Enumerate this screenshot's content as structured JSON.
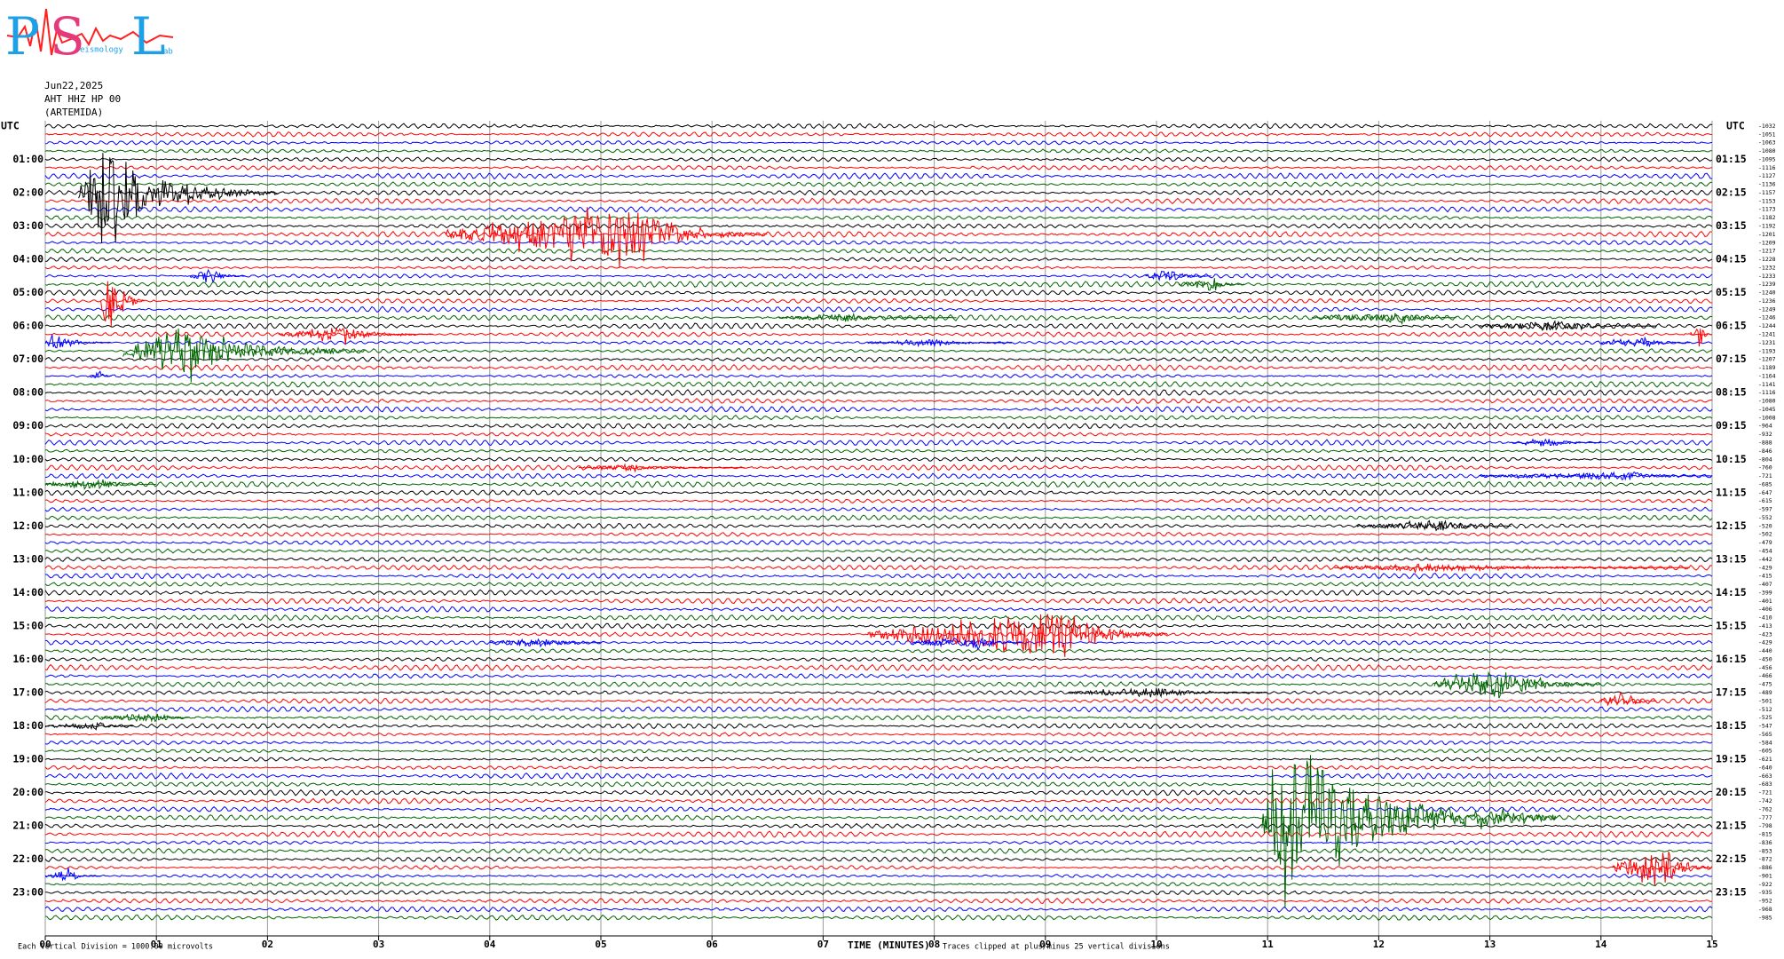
{
  "chart_data": {
    "type": "helicorder",
    "logo": {
      "letters": [
        "P",
        "S",
        "L"
      ],
      "words": [
        "eismology",
        "ab"
      ]
    },
    "date": "Jun22,2025",
    "station": "AHT HHZ HP 00",
    "site": "(ARTEMIDA)",
    "zone_left": "UTC",
    "zone_right": "UTC",
    "xlabel": "TIME (MINUTES)",
    "scale_note": "Each Vertical Division = 1000.00 microvolts",
    "clip_note": "Traces clipped at plus/minus 25 vertical divisions",
    "xlim": [
      0,
      15
    ],
    "xticks": [
      {
        "value": 0,
        "label": "00"
      },
      {
        "value": 1,
        "label": "01"
      },
      {
        "value": 2,
        "label": "02"
      },
      {
        "value": 3,
        "label": "03"
      },
      {
        "value": 4,
        "label": "04"
      },
      {
        "value": 5,
        "label": "05"
      },
      {
        "value": 6,
        "label": "06"
      },
      {
        "value": 7,
        "label": "07"
      },
      {
        "value": 8,
        "label": "08"
      },
      {
        "value": 9,
        "label": "09"
      },
      {
        "value": 10,
        "label": "10"
      },
      {
        "value": 11,
        "label": "11"
      },
      {
        "value": 12,
        "label": "12"
      },
      {
        "value": 13,
        "label": "13"
      },
      {
        "value": 14,
        "label": "14"
      },
      {
        "value": 15,
        "label": "15"
      }
    ],
    "grid": true,
    "trace_colors": [
      "#000000",
      "#ff0000",
      "#0000ff",
      "#006400"
    ],
    "left_labels": [
      "01:00",
      "02:00",
      "03:00",
      "04:00",
      "05:00",
      "06:00",
      "07:00",
      "08:00",
      "09:00",
      "10:00",
      "11:00",
      "12:00",
      "13:00",
      "14:00",
      "15:00",
      "16:00",
      "17:00",
      "18:00",
      "19:00",
      "20:00",
      "21:00",
      "22:00",
      "23:00"
    ],
    "right_labels": [
      "01:15",
      "02:15",
      "03:15",
      "04:15",
      "05:15",
      "06:15",
      "07:15",
      "08:15",
      "09:15",
      "10:15",
      "11:15",
      "12:15",
      "13:15",
      "14:15",
      "15:15",
      "16:15",
      "17:15",
      "18:15",
      "19:15",
      "20:15",
      "21:15",
      "22:15",
      "23:15"
    ],
    "offsets": [
      -1032,
      -1051,
      -1063,
      -1080,
      -1095,
      -1116,
      -1127,
      -1136,
      -1157,
      -1153,
      -1173,
      -1182,
      -1192,
      -1201,
      -1209,
      -1217,
      -1228,
      -1232,
      -1233,
      -1239,
      -1240,
      -1236,
      -1249,
      -1246,
      -1244,
      -1241,
      -1231,
      -1193,
      -1207,
      -1189,
      -1164,
      -1141,
      -1116,
      -1080,
      -1045,
      -1008,
      -964,
      -932,
      -888,
      -846,
      -804,
      -760,
      -721,
      -685,
      -647,
      -615,
      -597,
      -552,
      -520,
      -502,
      -479,
      -454,
      -442,
      -429,
      -415,
      -407,
      -399,
      -401,
      -406,
      -410,
      -413,
      -423,
      -429,
      -440,
      -450,
      -456,
      -466,
      -475,
      -489,
      -501,
      -512,
      -525,
      -547,
      -565,
      -584,
      -605,
      -621,
      -640,
      -663,
      -683,
      -721,
      -742,
      -762,
      -777,
      -798,
      -815,
      -836,
      -853,
      -872,
      -886,
      -901,
      -922,
      -935,
      -952,
      -968,
      -985
    ],
    "events": [
      {
        "trace": 8,
        "start": 0.3,
        "peak": 0.5,
        "end": 2.1,
        "amplitude": 5
      },
      {
        "trace": 13,
        "start": 3.6,
        "peak": 5.3,
        "end": 6.5,
        "amplitude": 3
      },
      {
        "trace": 21,
        "start": 0.5,
        "peak": 0.55,
        "end": 0.9,
        "amplitude": 3.5
      },
      {
        "trace": 27,
        "start": 0.7,
        "peak": 1.2,
        "end": 2.9,
        "amplitude": 3
      },
      {
        "trace": 26,
        "start": 0,
        "peak": 0.1,
        "end": 0.6,
        "amplitude": 1
      },
      {
        "trace": 25,
        "start": 2.1,
        "peak": 2.7,
        "end": 3.5,
        "amplitude": 0.8
      },
      {
        "trace": 24,
        "start": 12.9,
        "peak": 13.6,
        "end": 14.5,
        "amplitude": 0.6
      },
      {
        "trace": 25,
        "start": 14.8,
        "peak": 14.9,
        "end": 15,
        "amplitude": 1.2
      },
      {
        "trace": 18,
        "start": 1.3,
        "peak": 1.5,
        "end": 1.8,
        "amplitude": 0.8
      },
      {
        "trace": 18,
        "start": 9.9,
        "peak": 10.1,
        "end": 10.5,
        "amplitude": 0.8
      },
      {
        "trace": 19,
        "start": 10.2,
        "peak": 10.5,
        "end": 10.8,
        "amplitude": 0.8
      },
      {
        "trace": 23,
        "start": 6.6,
        "peak": 7.2,
        "end": 8.2,
        "amplitude": 0.5
      },
      {
        "trace": 23,
        "start": 11.4,
        "peak": 12.2,
        "end": 12.7,
        "amplitude": 0.6
      },
      {
        "trace": 26,
        "start": 7.4,
        "peak": 8,
        "end": 8.7,
        "amplitude": 0.5
      },
      {
        "trace": 26,
        "start": 14,
        "peak": 14.4,
        "end": 14.8,
        "amplitude": 0.6
      },
      {
        "trace": 30,
        "start": 0.4,
        "peak": 0.5,
        "end": 0.6,
        "amplitude": 0.6
      },
      {
        "trace": 41,
        "start": 4.8,
        "peak": 5.2,
        "end": 6.3,
        "amplitude": 0.4
      },
      {
        "trace": 43,
        "start": 0,
        "peak": 0.5,
        "end": 1,
        "amplitude": 0.6
      },
      {
        "trace": 48,
        "start": 11.8,
        "peak": 12.6,
        "end": 13.2,
        "amplitude": 0.6
      },
      {
        "trace": 53,
        "start": 11.6,
        "peak": 12.5,
        "end": 14.8,
        "amplitude": 0.5
      },
      {
        "trace": 38,
        "start": 13.2,
        "peak": 13.5,
        "end": 14,
        "amplitude": 0.6
      },
      {
        "trace": 42,
        "start": 12.9,
        "peak": 14.3,
        "end": 15,
        "amplitude": 0.5
      },
      {
        "trace": 61,
        "start": 7.4,
        "peak": 9.2,
        "end": 10.1,
        "amplitude": 2.8
      },
      {
        "trace": 62,
        "start": 4,
        "peak": 4.5,
        "end": 5,
        "amplitude": 0.6
      },
      {
        "trace": 62,
        "start": 7.8,
        "peak": 8.4,
        "end": 8.8,
        "amplitude": 0.8
      },
      {
        "trace": 67,
        "start": 12.5,
        "peak": 13.1,
        "end": 14,
        "amplitude": 1.8
      },
      {
        "trace": 68,
        "start": 9.2,
        "peak": 10,
        "end": 11,
        "amplitude": 0.6
      },
      {
        "trace": 69,
        "start": 14,
        "peak": 14.2,
        "end": 14.5,
        "amplitude": 1.3
      },
      {
        "trace": 71,
        "start": 0.5,
        "peak": 1,
        "end": 1.3,
        "amplitude": 0.6
      },
      {
        "trace": 72,
        "start": 0,
        "peak": 0.5,
        "end": 0.8,
        "amplitude": 0.5
      },
      {
        "trace": 83,
        "start": 10.95,
        "peak": 11.15,
        "end": 13.6,
        "amplitude": 9
      },
      {
        "trace": 89,
        "start": 14.1,
        "peak": 14.6,
        "end": 15,
        "amplitude": 2.2
      },
      {
        "trace": 90,
        "start": 0,
        "peak": 0.2,
        "end": 0.5,
        "amplitude": 0.7
      }
    ]
  }
}
